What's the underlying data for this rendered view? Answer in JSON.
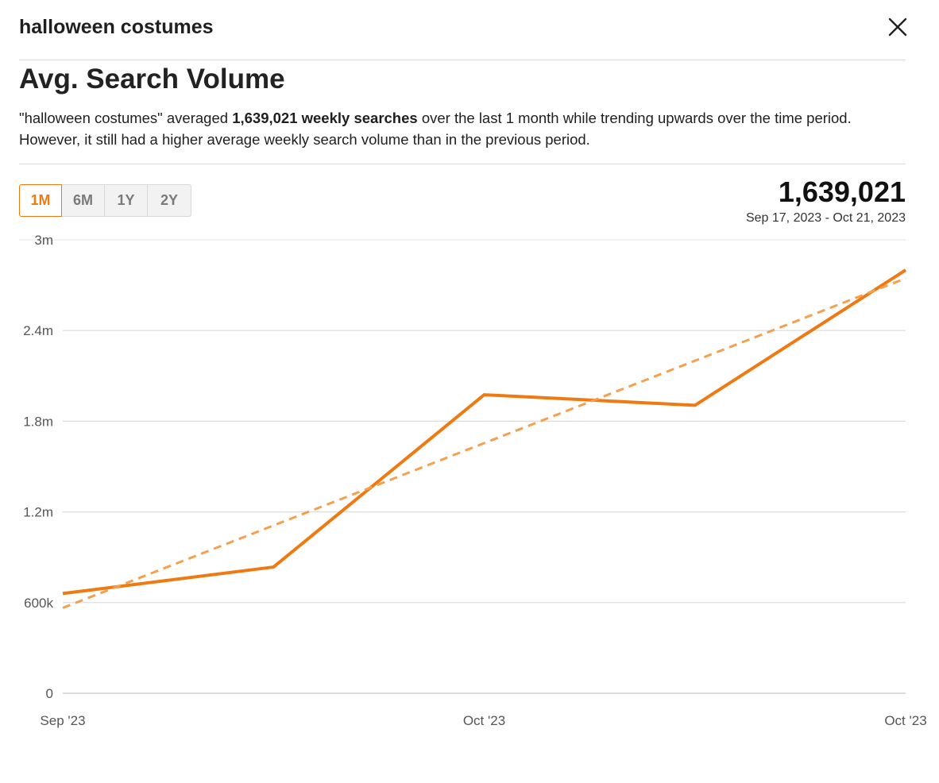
{
  "header": {
    "query": "halloween costumes",
    "close_icon": "close-icon"
  },
  "section": {
    "title": "Avg. Search Volume"
  },
  "summary": {
    "part1": "\"halloween costumes\" averaged ",
    "highlight": "1,639,021 weekly searches",
    "part2": " over the last 1 month while trending upwards over the time period. However, it still had a higher average weekly search volume than in the previous period."
  },
  "range_tabs": [
    {
      "label": "1M",
      "active": true
    },
    {
      "label": "6M",
      "active": false
    },
    {
      "label": "1Y",
      "active": false
    },
    {
      "label": "2Y",
      "active": false
    }
  ],
  "stat": {
    "value": "1,639,021",
    "date_range": "Sep 17, 2023 - Oct 21, 2023"
  },
  "colors": {
    "accent": "#f07a12",
    "trend": "#f5a04e",
    "grid": "#dcdcdc",
    "axis_text": "#555555"
  },
  "chart_data": {
    "type": "line",
    "title": "",
    "xlabel": "",
    "ylabel": "",
    "ylim": [
      0,
      3000000
    ],
    "y_ticks": [
      0,
      600000,
      1200000,
      1800000,
      2400000,
      3000000
    ],
    "y_tick_labels": [
      "0",
      "600k",
      "1.2m",
      "1.8m",
      "2.4m",
      "3m"
    ],
    "x_tick_labels": [
      "Sep '23",
      "Oct '23",
      "Oct '23"
    ],
    "x_tick_positions": [
      0,
      2,
      4
    ],
    "grid": true,
    "series": [
      {
        "values": [
          660000,
          835000,
          1975000,
          1905000,
          2800000
        ],
        "style": "solid"
      },
      {
        "values": [
          565000,
          1110000,
          1655000,
          2200000,
          2745000
        ],
        "style": "dashed"
      }
    ]
  }
}
